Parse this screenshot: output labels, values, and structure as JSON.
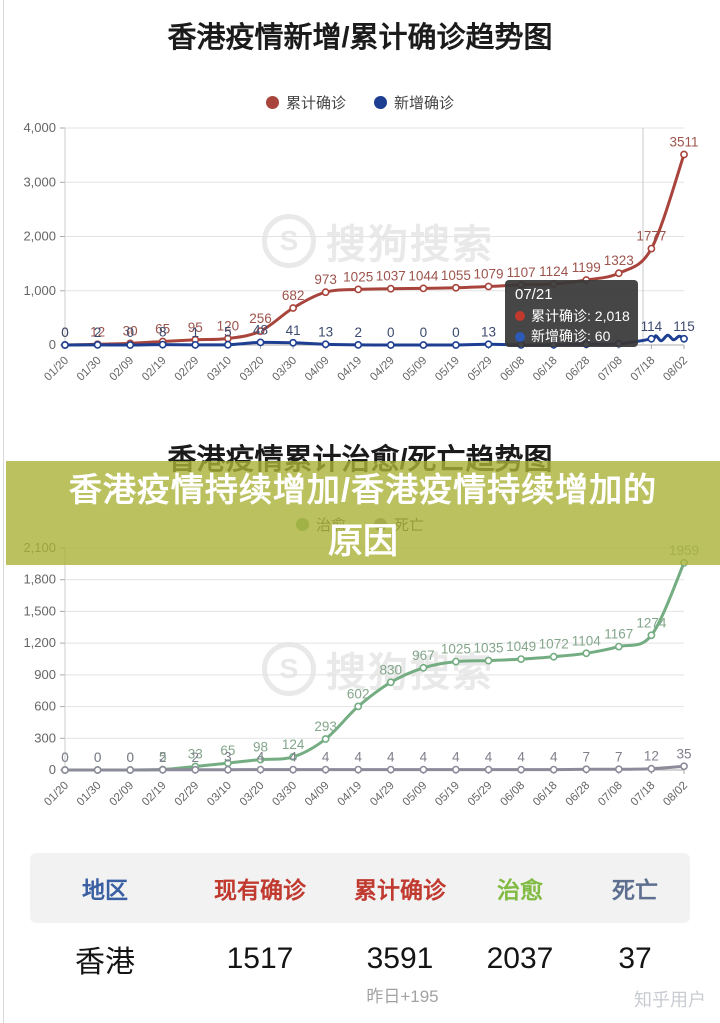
{
  "overlay": {
    "line1": "香港疫情持续增加/香港疫情持续增加的",
    "line2": "原因",
    "band_color": "rgba(171,177,55,0.8)"
  },
  "watermark": {
    "logo": "S",
    "text": "搜狗搜索"
  },
  "footer": {
    "user_watermark": "知乎用户"
  },
  "chart_data": [
    {
      "type": "line",
      "title": "香港疫情新增/累计确诊趋势图",
      "categories": [
        "01/20",
        "01/30",
        "02/09",
        "02/19",
        "02/29",
        "03/10",
        "03/20",
        "03/30",
        "04/09",
        "04/19",
        "04/29",
        "05/09",
        "05/19",
        "05/29",
        "06/08",
        "06/18",
        "06/28",
        "07/08",
        "07/18",
        "08/02"
      ],
      "ylim": [
        0,
        4000
      ],
      "yticks": [
        "0",
        "1,000",
        "2,000",
        "3,000",
        "4,000"
      ],
      "grid": true,
      "legend_position": "top",
      "series": [
        {
          "name": "累计确诊",
          "color": "#a8443c",
          "label_color": "#9c544c",
          "values": [
            0,
            12,
            30,
            65,
            95,
            120,
            256,
            682,
            973,
            1025,
            1037,
            1044,
            1055,
            1079,
            1107,
            1124,
            1199,
            1323,
            1777,
            3511
          ],
          "labels": [
            "0",
            "12",
            "30",
            "65",
            "95",
            "120",
            "256",
            "682",
            "973",
            "1025",
            "1037",
            "1044",
            "1055",
            "1079",
            "1107",
            "1124",
            "1199",
            "1323",
            "1777",
            "3511"
          ]
        },
        {
          "name": "新增确诊",
          "color": "#1d3e91",
          "label_color": "#3c4a6e",
          "end_wiggle": true,
          "values": [
            0,
            2,
            0,
            8,
            1,
            5,
            48,
            41,
            13,
            2,
            0,
            0,
            0,
            13,
            1,
            4,
            14,
            24,
            114,
            115
          ],
          "labels": [
            "0",
            "2",
            "0",
            "8",
            "1",
            "5",
            "48",
            "41",
            "13",
            "2",
            "0",
            "0",
            "0",
            "13",
            "",
            "",
            "",
            "",
            "114",
            "115"
          ]
        }
      ],
      "tooltip": {
        "date": "07/21",
        "items": [
          {
            "name": "累计确诊",
            "value": "2,018",
            "color": "#c0392b"
          },
          {
            "name": "新增确诊",
            "value": "60",
            "color": "#2b5bb7"
          }
        ],
        "crosshair_category": "07/21"
      }
    },
    {
      "type": "line",
      "title": "香港疫情累计治愈/死亡趋势图",
      "categories": [
        "01/20",
        "01/30",
        "02/09",
        "02/19",
        "02/29",
        "03/10",
        "03/20",
        "03/30",
        "04/09",
        "04/19",
        "04/29",
        "05/09",
        "05/19",
        "05/29",
        "06/08",
        "06/18",
        "06/28",
        "07/08",
        "07/18",
        "08/02"
      ],
      "ylim": [
        0,
        2100
      ],
      "yticks": [
        "0",
        "300",
        "600",
        "900",
        "1,200",
        "1,500",
        "1,800",
        "2,100"
      ],
      "grid": true,
      "legend_position": "top",
      "series": [
        {
          "name": "治愈",
          "color": "#74ad82",
          "label_color": "#83a68b",
          "values": [
            0,
            0,
            0,
            5,
            33,
            65,
            98,
            124,
            293,
            602,
            830,
            967,
            1025,
            1035,
            1049,
            1072,
            1104,
            1167,
            1274,
            1959
          ],
          "labels": [
            "0",
            "0",
            "0",
            "5",
            "33",
            "65",
            "98",
            "124",
            "293",
            "602",
            "830",
            "967",
            "1025",
            "1035",
            "1049",
            "1072",
            "1104",
            "1167",
            "1274",
            "1959"
          ]
        },
        {
          "name": "死亡",
          "color": "#8b8b9a",
          "label_color": "#7f7f8c",
          "values": [
            0,
            0,
            0,
            2,
            2,
            3,
            4,
            4,
            4,
            4,
            4,
            4,
            4,
            4,
            4,
            4,
            7,
            7,
            12,
            35
          ],
          "labels": [
            "0",
            "0",
            "0",
            "2",
            "2",
            "3",
            "4",
            "4",
            "4",
            "4",
            "4",
            "4",
            "4",
            "4",
            "4",
            "4",
            "7",
            "7",
            "12",
            "35"
          ]
        }
      ]
    },
    {
      "type": "table",
      "headers": [
        {
          "label": "地区",
          "color": "#3b5fa3"
        },
        {
          "label": "现有确诊",
          "color": "#c03a30"
        },
        {
          "label": "累计确诊",
          "color": "#c03a30"
        },
        {
          "label": "治愈",
          "color": "#82bb43"
        },
        {
          "label": "死亡",
          "color": "#5f6f90"
        }
      ],
      "rows": [
        [
          "香港",
          "1517",
          "3591",
          "2037",
          "37"
        ]
      ],
      "note": "昨日+195"
    }
  ]
}
